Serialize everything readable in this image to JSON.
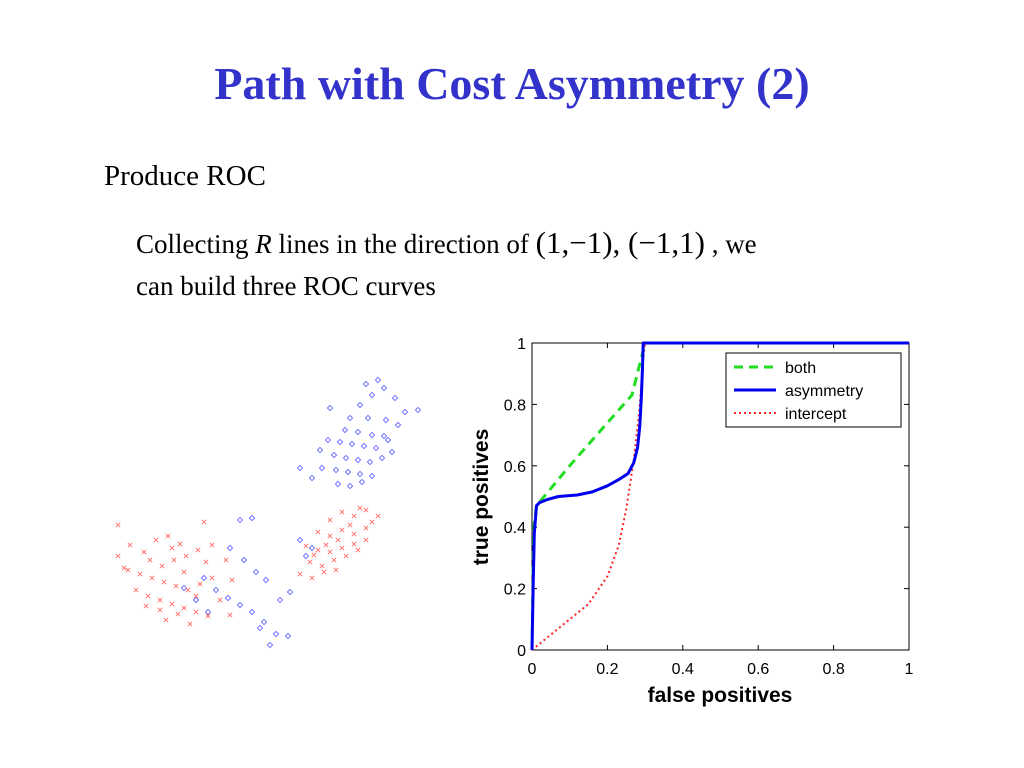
{
  "slide": {
    "title": "Path with Cost Asymmetry (2)",
    "bullet": "Produce ROC",
    "sub_bullet": {
      "pre": "Collecting ",
      "emph": "R",
      "mid": " lines in the direction of ",
      "math": "(1,−1), (−1,1)",
      "post": " , we",
      "line2": "can build three ROC curves"
    }
  },
  "colors": {
    "title": "#3333cc",
    "both": "#22dd22",
    "asymmetry": "#0000ee",
    "intercept": "#ff2222",
    "scatter_blue": "#6b6bff",
    "scatter_red": "#ff6b6b"
  },
  "chart_data": [
    {
      "type": "line",
      "xlabel": "false positives",
      "ylabel": "true positives",
      "xlim": [
        0,
        1
      ],
      "ylim": [
        0,
        1
      ],
      "xticks": [
        "0",
        "0.2",
        "0.4",
        "0.6",
        "0.8",
        "1"
      ],
      "yticks": [
        "0",
        "0.2",
        "0.4",
        "0.6",
        "0.8",
        "1"
      ],
      "grid": false,
      "legend_position": "top-right",
      "series": [
        {
          "name": "both",
          "style": "dashed",
          "points": [
            [
              0,
              0
            ],
            [
              0.003,
              0.27
            ],
            [
              0.005,
              0.4
            ],
            [
              0.012,
              0.47
            ],
            [
              0.1,
              0.6
            ],
            [
              0.2,
              0.74
            ],
            [
              0.265,
              0.83
            ],
            [
              0.3,
              1
            ],
            [
              1,
              1
            ]
          ]
        },
        {
          "name": "asymmetry",
          "style": "solid",
          "points": [
            [
              0,
              0
            ],
            [
              0.003,
              0.2
            ],
            [
              0.006,
              0.38
            ],
            [
              0.012,
              0.47
            ],
            [
              0.02,
              0.48
            ],
            [
              0.04,
              0.49
            ],
            [
              0.07,
              0.5
            ],
            [
              0.12,
              0.505
            ],
            [
              0.16,
              0.515
            ],
            [
              0.2,
              0.535
            ],
            [
              0.23,
              0.555
            ],
            [
              0.255,
              0.575
            ],
            [
              0.27,
              0.61
            ],
            [
              0.28,
              0.66
            ],
            [
              0.286,
              0.73
            ],
            [
              0.29,
              0.82
            ],
            [
              0.293,
              0.92
            ],
            [
              0.295,
              1
            ],
            [
              1,
              1
            ]
          ]
        },
        {
          "name": "intercept",
          "style": "dotted",
          "points": [
            [
              0,
              0
            ],
            [
              0.05,
              0.05
            ],
            [
              0.1,
              0.1
            ],
            [
              0.15,
              0.15
            ],
            [
              0.2,
              0.24
            ],
            [
              0.23,
              0.34
            ],
            [
              0.25,
              0.46
            ],
            [
              0.27,
              0.62
            ],
            [
              0.285,
              0.78
            ],
            [
              0.295,
              0.95
            ],
            [
              0.3,
              1
            ],
            [
              1,
              1
            ]
          ]
        }
      ]
    },
    {
      "type": "scatter",
      "series": [
        {
          "name": "",
          "color_key": "scatter_blue",
          "marker": "diamond",
          "points": [
            [
              360,
              405
            ],
            [
              372,
              395
            ],
            [
              384,
              388
            ],
            [
              395,
              398
            ],
            [
              405,
              412
            ],
            [
              418,
              410
            ],
            [
              330,
              408
            ],
            [
              350,
              418
            ],
            [
              368,
              418
            ],
            [
              386,
              420
            ],
            [
              398,
              425
            ],
            [
              345,
              430
            ],
            [
              358,
              432
            ],
            [
              372,
              435
            ],
            [
              384,
              436
            ],
            [
              328,
              440
            ],
            [
              340,
              442
            ],
            [
              352,
              444
            ],
            [
              364,
              446
            ],
            [
              376,
              448
            ],
            [
              388,
              440
            ],
            [
              392,
              452
            ],
            [
              320,
              450
            ],
            [
              334,
              455
            ],
            [
              346,
              458
            ],
            [
              358,
              460
            ],
            [
              370,
              462
            ],
            [
              382,
              458
            ],
            [
              322,
              468
            ],
            [
              336,
              470
            ],
            [
              348,
              472
            ],
            [
              360,
              474
            ],
            [
              372,
              476
            ],
            [
              338,
              484
            ],
            [
              350,
              486
            ],
            [
              362,
              482
            ],
            [
              300,
              468
            ],
            [
              312,
              478
            ],
            [
              378,
              380
            ],
            [
              366,
              384
            ],
            [
              240,
              520
            ],
            [
              252,
              518
            ],
            [
              230,
              548
            ],
            [
              244,
              560
            ],
            [
              256,
              572
            ],
            [
              266,
              580
            ],
            [
              216,
              590
            ],
            [
              228,
              598
            ],
            [
              240,
              605
            ],
            [
              252,
              612
            ],
            [
              208,
              612
            ],
            [
              196,
              600
            ],
            [
              264,
              622
            ],
            [
              276,
              634
            ],
            [
              288,
              636
            ],
            [
              270,
              645
            ],
            [
              260,
              628
            ],
            [
              280,
              600
            ],
            [
              290,
              592
            ],
            [
              184,
              588
            ],
            [
              204,
              578
            ],
            [
              300,
              540
            ],
            [
              306,
              556
            ],
            [
              312,
              548
            ]
          ]
        },
        {
          "name": "",
          "color_key": "scatter_red",
          "marker": "x",
          "points": [
            [
              118,
              525
            ],
            [
              130,
              545
            ],
            [
              144,
              552
            ],
            [
              156,
              540
            ],
            [
              168,
              536
            ],
            [
              180,
              544
            ],
            [
              150,
              560
            ],
            [
              162,
              566
            ],
            [
              174,
              560
            ],
            [
              186,
              556
            ],
            [
              198,
              550
            ],
            [
              206,
              562
            ],
            [
              128,
              570
            ],
            [
              140,
              574
            ],
            [
              152,
              578
            ],
            [
              164,
              582
            ],
            [
              176,
              586
            ],
            [
              188,
              590
            ],
            [
              200,
              584
            ],
            [
              212,
              578
            ],
            [
              136,
              590
            ],
            [
              148,
              596
            ],
            [
              160,
              600
            ],
            [
              172,
              604
            ],
            [
              184,
              608
            ],
            [
              196,
              612
            ],
            [
              208,
              616
            ],
            [
              220,
              600
            ],
            [
              166,
              620
            ],
            [
              178,
              614
            ],
            [
              190,
              624
            ],
            [
              160,
              610
            ],
            [
              146,
              606
            ],
            [
              204,
              522
            ],
            [
              212,
              545
            ],
            [
              226,
              560
            ],
            [
              232,
              580
            ],
            [
              124,
              568
            ],
            [
              172,
              548
            ],
            [
              184,
              572
            ],
            [
              196,
              596
            ],
            [
              118,
              556
            ],
            [
              230,
              615
            ],
            [
              330,
              520
            ],
            [
              342,
              512
            ],
            [
              354,
              516
            ],
            [
              366,
              510
            ],
            [
              378,
              516
            ],
            [
              318,
              532
            ],
            [
              330,
              536
            ],
            [
              342,
              530
            ],
            [
              354,
              534
            ],
            [
              366,
              528
            ],
            [
              306,
              546
            ],
            [
              318,
              550
            ],
            [
              330,
              552
            ],
            [
              342,
              548
            ],
            [
              354,
              544
            ],
            [
              366,
              540
            ],
            [
              310,
              562
            ],
            [
              322,
              566
            ],
            [
              334,
              560
            ],
            [
              346,
              556
            ],
            [
              300,
              574
            ],
            [
              312,
              578
            ],
            [
              324,
              572
            ],
            [
              336,
              570
            ],
            [
              360,
              508
            ],
            [
              350,
              525
            ],
            [
              338,
              540
            ],
            [
              326,
              545
            ],
            [
              314,
              555
            ],
            [
              372,
              522
            ],
            [
              358,
              550
            ]
          ]
        }
      ]
    }
  ]
}
